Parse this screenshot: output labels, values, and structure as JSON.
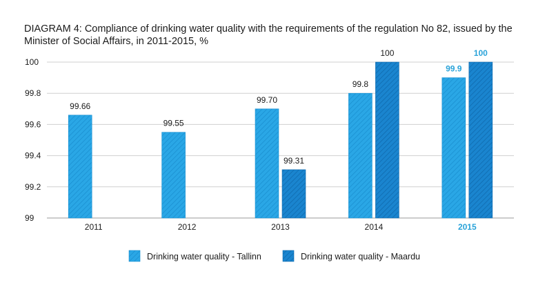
{
  "title": "DIAGRAM 4: Compliance of drinking water quality with the requirements of the regulation No 82, issued by the Minister of Social Affairs, in 2011-2015, %",
  "colors": {
    "tallinn": "#2aa7e6",
    "maardu": "#1a85cf",
    "highlight_text": "#2aa3d9",
    "grid": "#cfcfcf"
  },
  "chart_data": {
    "type": "bar",
    "title": "DIAGRAM 4: Compliance of drinking water quality with the requirements of the regulation No 82, issued by the Minister of Social Affairs, in 2011-2015, %",
    "categories": [
      "2011",
      "2012",
      "2013",
      "2014",
      "2015"
    ],
    "highlighted_category": "2015",
    "ylim": [
      99,
      100
    ],
    "yticks": [
      "99",
      "99.2",
      "99.4",
      "99.6",
      "99.8",
      "100"
    ],
    "grid": true,
    "legend_position": "bottom",
    "series": [
      {
        "name": "Drinking water quality - Tallinn",
        "values": [
          99.66,
          99.55,
          99.7,
          99.8,
          99.9
        ],
        "labels": [
          "99.66",
          "99.55",
          "99.70",
          "99.8",
          "99.9"
        ]
      },
      {
        "name": "Drinking water quality - Maardu",
        "values": [
          null,
          null,
          99.31,
          100,
          100
        ],
        "labels": [
          "",
          "",
          "99.31",
          "100",
          "100"
        ]
      }
    ]
  }
}
